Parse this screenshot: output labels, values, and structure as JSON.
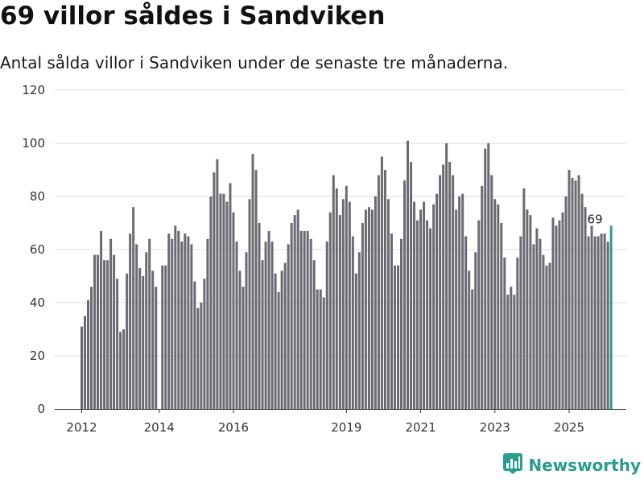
{
  "title": "69 villor såldes i Sandviken",
  "subtitle": "Antal sålda villor i Sandviken under de senaste tre månaderna.",
  "brand": {
    "name": "Newsworthy"
  },
  "colors": {
    "bar": "#6b6a72",
    "highlight": "#2a9d8f",
    "grid": "#dddddd",
    "axis": "#333333"
  },
  "chart_data": {
    "type": "bar",
    "title": "69 villor såldes i Sandviken",
    "xlabel": "",
    "ylabel": "",
    "ylim": [
      0,
      120
    ],
    "yticks": [
      0,
      20,
      40,
      60,
      80,
      100,
      120
    ],
    "xticks": [
      {
        "label": "2012",
        "index": 0
      },
      {
        "label": "2014",
        "index": 24
      },
      {
        "label": "2016",
        "index": 47
      },
      {
        "label": "2019",
        "index": 82
      },
      {
        "label": "2021",
        "index": 105
      },
      {
        "label": "2023",
        "index": 128
      },
      {
        "label": "2025",
        "index": 151
      }
    ],
    "annotation": {
      "label": "69",
      "index": 159
    },
    "values": [
      31,
      35,
      41,
      46,
      58,
      58,
      67,
      56,
      56,
      64,
      58,
      49,
      29,
      30,
      51,
      66,
      76,
      62,
      53,
      50,
      59,
      64,
      52,
      46,
      0,
      54,
      54,
      66,
      64,
      69,
      67,
      63,
      66,
      65,
      62,
      48,
      38,
      40,
      49,
      64,
      80,
      89,
      94,
      81,
      81,
      78,
      85,
      74,
      63,
      52,
      46,
      59,
      79,
      96,
      90,
      70,
      56,
      63,
      67,
      63,
      51,
      44,
      52,
      55,
      62,
      70,
      73,
      75,
      67,
      67,
      67,
      64,
      56,
      45,
      45,
      42,
      63,
      74,
      88,
      83,
      73,
      79,
      84,
      78,
      65,
      51,
      59,
      70,
      75,
      76,
      75,
      80,
      88,
      95,
      90,
      79,
      66,
      54,
      54,
      64,
      86,
      101,
      93,
      78,
      71,
      75,
      78,
      71,
      68,
      77,
      81,
      88,
      92,
      100,
      93,
      88,
      75,
      80,
      81,
      65,
      52,
      45,
      59,
      71,
      84,
      98,
      100,
      88,
      79,
      77,
      70,
      57,
      43,
      46,
      43,
      57,
      65,
      83,
      75,
      73,
      62,
      68,
      64,
      58,
      54,
      55,
      72,
      69,
      71,
      74,
      80,
      90,
      87,
      86,
      88,
      81,
      76,
      65,
      69,
      65,
      65,
      66,
      66,
      63,
      69
    ]
  }
}
